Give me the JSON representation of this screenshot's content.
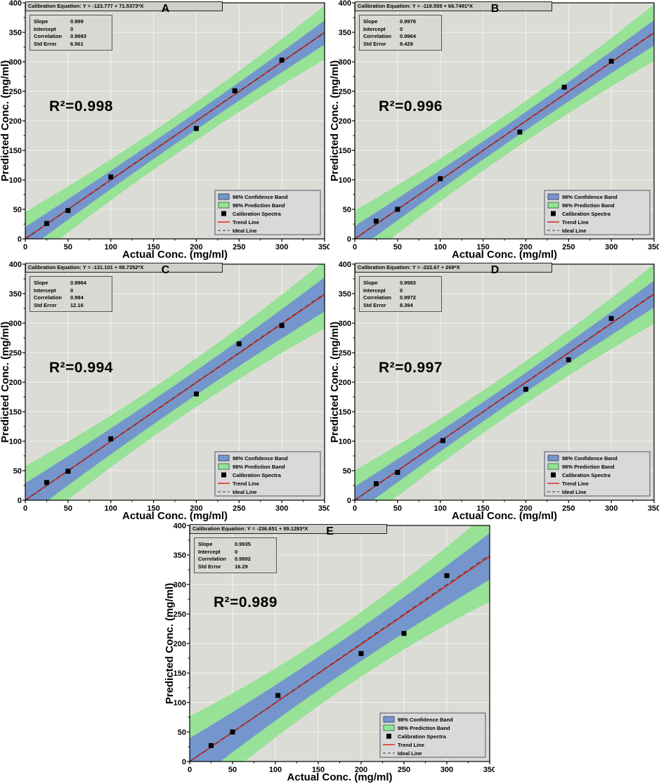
{
  "figure_title": "",
  "colors": {
    "plot_bg": "#dcdcd6",
    "grid": "#ffffff",
    "prediction_band": "#97e297",
    "confidence_band": "#7496cd",
    "trend_line": "#d42a1e",
    "ideal_line": "#3a3a3a",
    "marker": "#000000",
    "legend_bg": "#d9d9d9"
  },
  "axes": {
    "x_label": "Actual Conc. (mg/ml)",
    "y_label": "Predicted Conc. (mg/ml)",
    "x_range": [
      0,
      350
    ],
    "y_range": [
      0,
      400
    ],
    "x_ticks": [
      0,
      50,
      100,
      150,
      200,
      250,
      300,
      350
    ],
    "y_ticks": [
      0,
      50,
      100,
      150,
      200,
      250,
      300,
      350,
      400
    ],
    "grid": true
  },
  "stats_labels": {
    "slope": "Slope",
    "intercept": "Intercept",
    "correlation": "Correlation",
    "std_error": "Std Error"
  },
  "legend": {
    "position": "bottom-right",
    "items": [
      {
        "type": "confidence",
        "label": "98% Confidence Band"
      },
      {
        "type": "prediction",
        "label": "98% Prediction Band"
      },
      {
        "type": "marker",
        "label": "Calibration Spectra"
      },
      {
        "type": "trend",
        "label": "Trend Line"
      },
      {
        "type": "ideal",
        "label": "Ideal Line"
      }
    ]
  },
  "chart_data": [
    {
      "type": "scatter",
      "panel_label": "A",
      "equation_text": "Calibration Equation: Y = -123.777 + 71.5373*X",
      "stats": {
        "slope": "0.999",
        "intercept": "0",
        "correlation": "0.9983",
        "std_error": "6.561"
      },
      "r2_text": "R²=0.998",
      "points": {
        "x": [
          25,
          50,
          100,
          200,
          245,
          300
        ],
        "y": [
          26,
          48,
          105,
          187,
          251,
          303
        ]
      },
      "trend": {
        "slope": 0.999,
        "intercept": 0
      },
      "bands": {
        "confidence_half_width": 17,
        "prediction_half_width": 38
      }
    },
    {
      "type": "scatter",
      "panel_label": "B",
      "equation_text": "Calibration Equation: Y = -119.559 + 66.7491*X",
      "stats": {
        "slope": "0.9978",
        "intercept": "0",
        "correlation": "0.9964",
        "std_error": "9.429"
      },
      "r2_text": "R²=0.996",
      "points": {
        "x": [
          25,
          50,
          100,
          193,
          245,
          300
        ],
        "y": [
          30,
          50,
          102,
          181,
          257,
          301
        ]
      },
      "trend": {
        "slope": 0.9978,
        "intercept": 0
      },
      "bands": {
        "confidence_half_width": 18,
        "prediction_half_width": 40
      }
    },
    {
      "type": "scatter",
      "panel_label": "C",
      "equation_text": "Calibration Equation: Y = -131.101 + 89.7252*X",
      "stats": {
        "slope": "0.9964",
        "intercept": "0",
        "correlation": "0.994",
        "std_error": "12.16"
      },
      "r2_text": "R²=0.994",
      "points": {
        "x": [
          25,
          50,
          100,
          200,
          250,
          300
        ],
        "y": [
          30,
          49,
          104,
          180,
          265,
          296
        ]
      },
      "trend": {
        "slope": 0.9964,
        "intercept": 0
      },
      "bands": {
        "confidence_half_width": 24,
        "prediction_half_width": 48
      }
    },
    {
      "type": "scatter",
      "panel_label": "D",
      "equation_text": "Calibration Equation: Y = -222.67 + 269*X",
      "stats": {
        "slope": "0.9983",
        "intercept": "0",
        "correlation": "0.9972",
        "std_error": "8.394"
      },
      "r2_text": "R²=0.997",
      "points": {
        "x": [
          25,
          50,
          103,
          200,
          250,
          300
        ],
        "y": [
          28,
          47,
          101,
          188,
          238,
          308
        ]
      },
      "trend": {
        "slope": 0.9983,
        "intercept": 0
      },
      "bands": {
        "confidence_half_width": 19,
        "prediction_half_width": 42
      }
    },
    {
      "type": "scatter",
      "panel_label": "E",
      "equation_text": "Calibration Equation: Y = -236.651 + 89.1283*X",
      "stats": {
        "slope": "0.9935",
        "intercept": "0",
        "correlation": "0.9892",
        "std_error": "16.29"
      },
      "r2_text": "R²=0.989",
      "points": {
        "x": [
          25,
          50,
          103,
          200,
          250,
          300
        ],
        "y": [
          27,
          50,
          112,
          183,
          217,
          315
        ]
      },
      "trend": {
        "slope": 0.9935,
        "intercept": 0
      },
      "bands": {
        "confidence_half_width": 33,
        "prediction_half_width": 64
      }
    }
  ]
}
